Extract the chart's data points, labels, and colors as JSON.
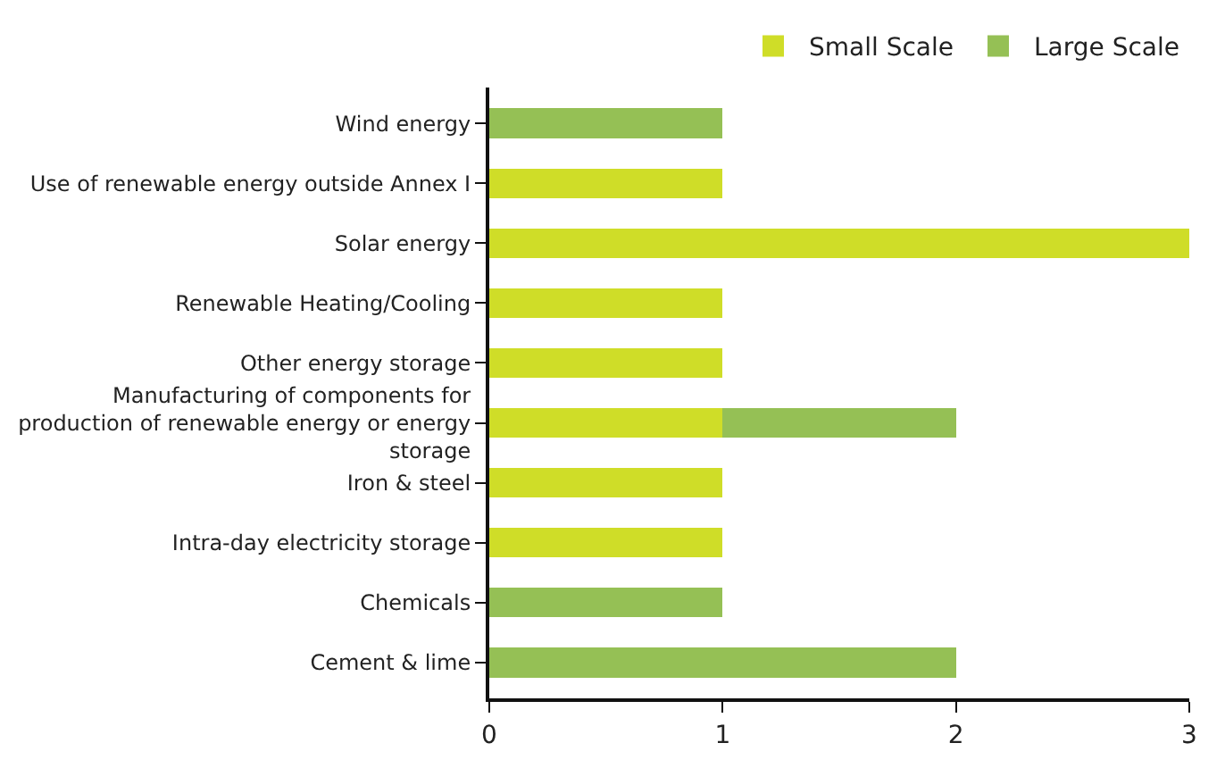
{
  "chart_data": {
    "type": "bar",
    "orientation": "horizontal",
    "stacked": true,
    "categories": [
      "Wind energy",
      "Use of renewable energy outside Annex I",
      "Solar energy",
      "Renewable Heating/Cooling",
      "Other energy storage",
      "Manufacturing of components for production of renewable energy or energy storage",
      "Iron & steel",
      "Intra-day electricity storage",
      "Chemicals",
      "Cement & lime"
    ],
    "series": [
      {
        "name": "Small Scale",
        "color": "#cfdd28",
        "values": [
          null,
          1,
          3,
          1,
          1,
          1,
          1,
          1,
          null,
          null
        ]
      },
      {
        "name": "Large Scale",
        "color": "#95c055",
        "values": [
          1,
          null,
          null,
          null,
          null,
          1,
          null,
          null,
          1,
          2
        ]
      }
    ],
    "xlim": [
      0,
      3
    ],
    "xticks": [
      0,
      1,
      2,
      3
    ],
    "legend": "top right"
  }
}
